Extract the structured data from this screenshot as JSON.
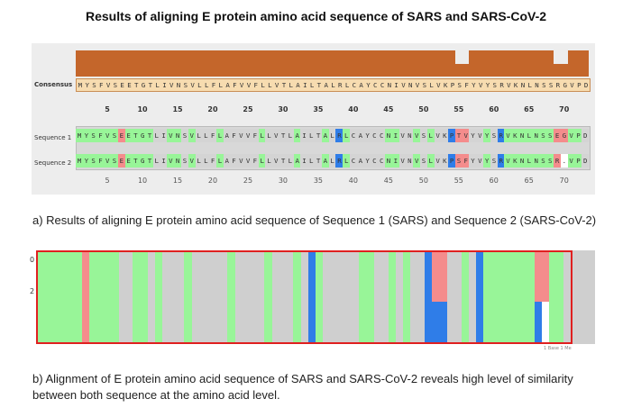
{
  "title": "Results of aligning E protein amino acid sequence of SARS and SARS-CoV-2",
  "labels": {
    "consensus": "Consensus",
    "seq1": "Sequence 1",
    "seq2": "Sequence 2"
  },
  "consensus": "MYSFVSEETGTLIVNSVLLFLAFVVFLLVTLAILTALRLCAYCCNIVNVSLVKPSFYVYSRVKNLNSSRGVPD",
  "seq1": "MYSFVSEETGTLIVNSVLLFLAFVVFLLVTLAILTALRLCAYCCNIVNVSLVKPTVYVYSRVKNLNSSEGVPD",
  "seq2": "MYSFVSEETGTLIVNSVLLFLAFVVFLLVTLAILTALRLCAYCCNIVNVSLVKPSFYVYSRVKNLNSSR.VPD",
  "tick_labels": [
    "5",
    "10",
    "15",
    "20",
    "25",
    "30",
    "35",
    "40",
    "45",
    "50",
    "55",
    "60",
    "65",
    "70"
  ],
  "overview_labels": [
    "0",
    "2"
  ],
  "caption_a": "a) Results of aligning E protein amino acid sequence of Sequence 1 (SARS) and Sequence 2 (SARS-CoV-2)",
  "caption_b": "b) Alignment of E protein amino acid sequence of SARS and SARS-CoV-2 reveals high level of similarity between both sequence at the amino acid level.",
  "scale_text": "1 Base 1 Me",
  "colors": {
    "green": "#98f598",
    "blue": "#2f7de8",
    "red": "#f48c8c",
    "grey": "#d4d4d4",
    "consensus_bar": "#c4662b"
  },
  "position_classes": "GGGGGGRGGGGGGGGGGGGGGGGGGGGGGGGGGGGGGBGGGGGGGGGGGGGGGBGGGGGGBGGGGGGGRGGG"
}
